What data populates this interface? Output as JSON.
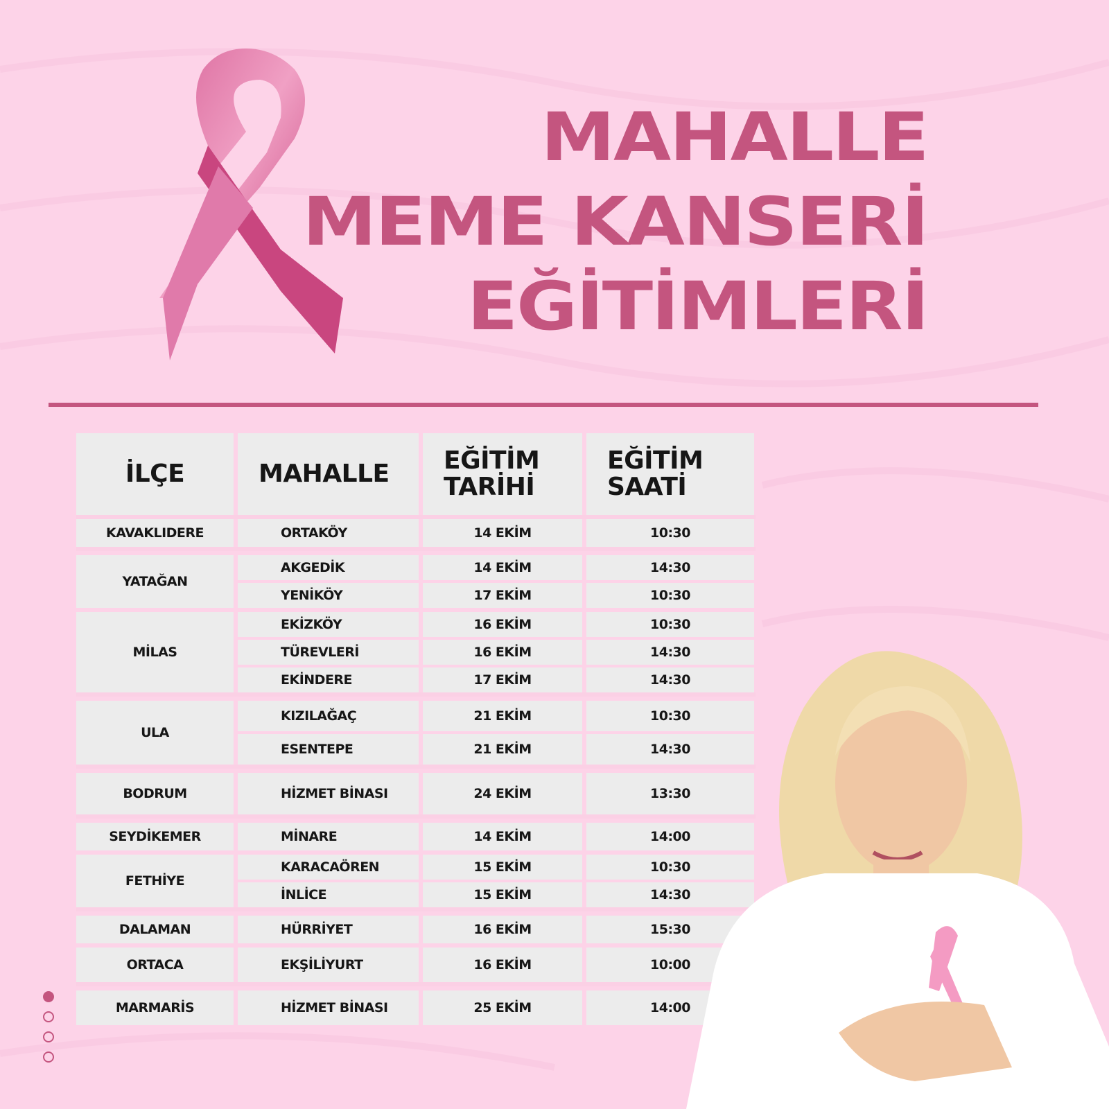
{
  "title": {
    "line1": "MAHALLE",
    "line2": "MEME KANSERİ",
    "line3": "EĞİTİMLERİ"
  },
  "colors": {
    "accent": "#c4557f",
    "background": "#fdd3e8",
    "cell": "#ececec"
  },
  "table": {
    "headers": [
      "İLÇE",
      "MAHALLE",
      "EĞİTİM TARİHİ",
      "EĞİTİM SAATİ"
    ],
    "groups": [
      {
        "ilce": "KAVAKLIDERE",
        "rows": [
          {
            "mahalle": "ORTAKÖY",
            "tarih": "14 EKİM",
            "saat": "10:30"
          }
        ]
      },
      {
        "ilce": "YATAĞAN",
        "rows": [
          {
            "mahalle": "AKGEDİK",
            "tarih": "14 EKİM",
            "saat": "14:30"
          },
          {
            "mahalle": "YENİKÖY",
            "tarih": "17 EKİM",
            "saat": "10:30"
          }
        ]
      },
      {
        "ilce": "MİLAS",
        "rows": [
          {
            "mahalle": "EKİZKÖY",
            "tarih": "16 EKİM",
            "saat": "10:30"
          },
          {
            "mahalle": "TÜREVLERİ",
            "tarih": "16 EKİM",
            "saat": "14:30"
          },
          {
            "mahalle": "EKİNDERE",
            "tarih": "17 EKİM",
            "saat": "14:30"
          }
        ]
      },
      {
        "ilce": "ULA",
        "rows": [
          {
            "mahalle": "KIZILAĞAÇ",
            "tarih": "21 EKİM",
            "saat": "10:30"
          },
          {
            "mahalle": "ESENTEPE",
            "tarih": "21 EKİM",
            "saat": "14:30"
          }
        ]
      },
      {
        "ilce": "BODRUM",
        "rows": [
          {
            "mahalle": "HİZMET BİNASI",
            "tarih": "24 EKİM",
            "saat": "13:30"
          }
        ]
      },
      {
        "ilce": "SEYDİKEMER",
        "rows": [
          {
            "mahalle": "MİNARE",
            "tarih": "14 EKİM",
            "saat": "14:00"
          }
        ]
      },
      {
        "ilce": "FETHİYE",
        "rows": [
          {
            "mahalle": "KARACAÖREN",
            "tarih": "15 EKİM",
            "saat": "10:30"
          },
          {
            "mahalle": "İNLİCE",
            "tarih": "15 EKİM",
            "saat": "14:30"
          }
        ]
      },
      {
        "ilce": "DALAMAN",
        "rows": [
          {
            "mahalle": "HÜRRİYET",
            "tarih": "16 EKİM",
            "saat": "15:30"
          }
        ]
      },
      {
        "ilce": "ORTACA",
        "rows": [
          {
            "mahalle": "EKŞİLİYURT",
            "tarih": "16 EKİM",
            "saat": "10:00"
          }
        ]
      },
      {
        "ilce": "MARMARİS",
        "rows": [
          {
            "mahalle": "HİZMET BİNASI",
            "tarih": "25 EKİM",
            "saat": "14:00"
          }
        ]
      }
    ]
  },
  "pagination": {
    "total": 4,
    "active": 1
  },
  "images": {
    "ribbon": "pink-ribbon-icon",
    "photo": "smiling-woman-with-pink-ribbon"
  }
}
